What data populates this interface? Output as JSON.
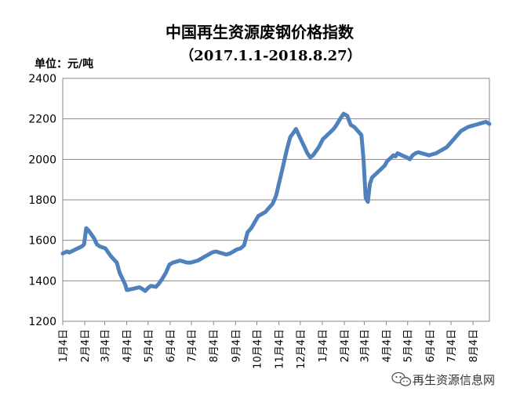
{
  "chart_data": {
    "type": "line",
    "title": "中国再生资源废钢价格指数",
    "subtitle": "（2017.1.1-2018.8.27）",
    "unit_label": "单位：元/吨",
    "xlabel": "",
    "ylabel": "",
    "ylim": [
      1200,
      2400
    ],
    "y_ticks": [
      1200,
      1400,
      1600,
      1800,
      2000,
      2200,
      2400
    ],
    "grid": true,
    "legend": "none",
    "line_color": "#4f81bd",
    "x_tick_labels": [
      "1月4日",
      "2月4日",
      "3月4日",
      "4月4日",
      "5月4日",
      "6月4日",
      "7月4日",
      "8月4日",
      "9月4日",
      "10月4日",
      "11月4日",
      "12月4日",
      "1月4日",
      "2月4日",
      "3月4日",
      "4月4日",
      "5月4日",
      "6月4日",
      "7月4日",
      "8月4日"
    ],
    "x_tick_positions": [
      0,
      31,
      59,
      90,
      120,
      151,
      181,
      212,
      243,
      273,
      304,
      334,
      365,
      396,
      424,
      455,
      485,
      516,
      546,
      577
    ],
    "x_range": [
      0,
      600
    ],
    "series": [
      {
        "x": [
          0,
          3,
          6,
          9,
          12,
          15,
          18,
          21,
          24,
          27,
          30,
          33,
          36,
          40,
          44,
          48,
          52,
          56,
          60,
          64,
          68,
          72,
          76,
          80,
          84,
          88,
          90,
          92,
          95,
          98,
          101,
          104,
          108,
          112,
          116,
          120,
          124,
          128,
          131,
          135,
          140,
          145,
          150,
          155,
          160,
          165,
          170,
          175,
          180,
          185,
          190,
          195,
          200,
          205,
          210,
          215,
          220,
          225,
          230,
          235,
          240,
          245,
          250,
          255,
          260,
          265,
          270,
          275,
          280,
          285,
          290,
          295,
          300,
          304,
          308,
          312,
          316,
          320,
          324,
          328,
          332,
          336,
          340,
          344,
          348,
          352,
          356,
          360,
          363,
          366,
          369,
          372,
          375,
          378,
          381,
          385,
          390,
          395,
          400,
          405,
          410,
          415,
          420,
          423,
          426,
          429,
          432,
          435,
          438,
          441,
          444,
          447,
          450,
          453,
          456,
          459,
          462,
          465,
          468,
          471,
          474,
          477,
          480,
          484,
          488,
          492,
          496,
          500,
          505,
          510,
          515,
          520,
          525,
          530,
          535,
          540,
          545,
          550,
          555,
          560,
          565,
          570,
          575,
          580,
          585,
          590,
          595,
          600
        ],
        "values": [
          1535,
          1540,
          1545,
          1540,
          1545,
          1550,
          1555,
          1560,
          1565,
          1570,
          1580,
          1660,
          1650,
          1630,
          1610,
          1580,
          1570,
          1565,
          1560,
          1540,
          1520,
          1505,
          1490,
          1440,
          1410,
          1380,
          1355,
          1355,
          1358,
          1360,
          1362,
          1365,
          1368,
          1360,
          1350,
          1365,
          1375,
          1372,
          1370,
          1385,
          1410,
          1440,
          1480,
          1490,
          1495,
          1500,
          1495,
          1490,
          1490,
          1495,
          1500,
          1510,
          1520,
          1530,
          1540,
          1545,
          1540,
          1535,
          1530,
          1535,
          1545,
          1555,
          1560,
          1575,
          1640,
          1660,
          1690,
          1720,
          1730,
          1740,
          1760,
          1780,
          1820,
          1880,
          1940,
          2000,
          2060,
          2110,
          2130,
          2150,
          2120,
          2090,
          2060,
          2030,
          2010,
          2020,
          2040,
          2060,
          2080,
          2100,
          2110,
          2120,
          2130,
          2140,
          2150,
          2170,
          2200,
          2225,
          2215,
          2170,
          2160,
          2140,
          2120,
          2000,
          1810,
          1790,
          1880,
          1910,
          1920,
          1930,
          1940,
          1950,
          1960,
          1970,
          1990,
          2000,
          2010,
          2020,
          2015,
          2030,
          2025,
          2020,
          2015,
          2010,
          2000,
          2020,
          2030,
          2035,
          2030,
          2025,
          2020,
          2025,
          2030,
          2040,
          2050,
          2060,
          2080,
          2100,
          2120,
          2140,
          2150,
          2160,
          2165,
          2170,
          2175,
          2180,
          2185,
          2175
        ]
      }
    ]
  },
  "watermark": {
    "text": "再生资源信息网",
    "icon": "wechat-icon"
  }
}
